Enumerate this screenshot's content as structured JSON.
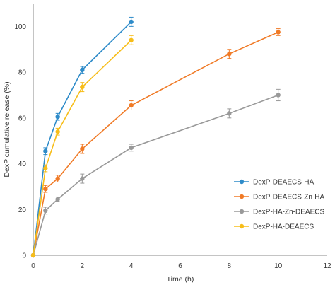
{
  "chart_data": {
    "type": "line",
    "title": "",
    "xlabel": "Time (h)",
    "ylabel": "DexP cumulative release (%)",
    "xlim": [
      0,
      12
    ],
    "ylim": [
      0,
      110
    ],
    "x_ticks": [
      0,
      2,
      4,
      6,
      8,
      10,
      12
    ],
    "y_ticks": [
      0,
      20,
      40,
      60,
      80,
      100
    ],
    "grid": false,
    "legend_position": "right",
    "series": [
      {
        "name": "DexP-DEAECS-HA",
        "color": "#2e8bc9",
        "x": [
          0,
          0.5,
          1,
          2,
          4
        ],
        "y": [
          0,
          45.5,
          60.5,
          81,
          102
        ],
        "err": [
          0,
          1.5,
          1.5,
          1.5,
          2
        ]
      },
      {
        "name": "DexP-DEAECS-Zn-HA",
        "color": "#f07a26",
        "x": [
          0,
          0.5,
          1,
          2,
          4,
          8,
          10
        ],
        "y": [
          0,
          29,
          33.5,
          46.5,
          65.5,
          88,
          97.5
        ],
        "err": [
          0,
          1.5,
          1.5,
          2,
          2,
          2,
          1.5
        ]
      },
      {
        "name": "DexP-HA-Zn-DEAECS",
        "color": "#999999",
        "x": [
          0,
          0.5,
          1,
          2,
          4,
          8,
          10
        ],
        "y": [
          0,
          19.5,
          24.5,
          33.5,
          47,
          62,
          70
        ],
        "err": [
          0,
          1.5,
          1,
          2,
          1.5,
          2,
          2.5
        ]
      },
      {
        "name": "DexP-HA-DEAECS",
        "color": "#f7bd19",
        "x": [
          0,
          0.5,
          1,
          2,
          4
        ],
        "y": [
          0,
          38,
          54,
          73.5,
          94
        ],
        "err": [
          0,
          1.5,
          1.5,
          2,
          2
        ]
      }
    ]
  }
}
